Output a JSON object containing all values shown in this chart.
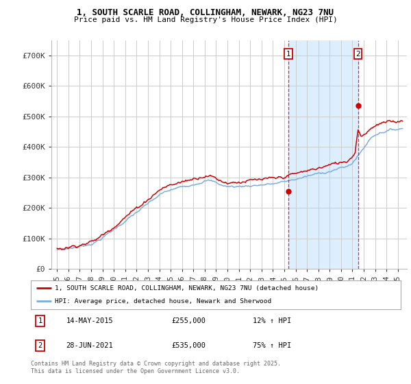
{
  "title_line1": "1, SOUTH SCARLE ROAD, COLLINGHAM, NEWARK, NG23 7NU",
  "title_line2": "Price paid vs. HM Land Registry's House Price Index (HPI)",
  "background_color": "#ffffff",
  "plot_bg_color": "#ffffff",
  "grid_color": "#cccccc",
  "red_color": "#cc0000",
  "blue_color": "#7aade0",
  "shade_color": "#ddeeff",
  "ylim": [
    0,
    750000
  ],
  "yticks": [
    0,
    100000,
    200000,
    300000,
    400000,
    500000,
    600000,
    700000
  ],
  "ytick_labels": [
    "£0",
    "£100K",
    "£200K",
    "£300K",
    "£400K",
    "£500K",
    "£600K",
    "£700K"
  ],
  "sale1_year": 2015.37,
  "sale1_y": 255000,
  "sale1_label": "1",
  "sale2_year": 2021.49,
  "sale2_y": 535000,
  "sale2_label": "2",
  "legend_line1": "1, SOUTH SCARLE ROAD, COLLINGHAM, NEWARK, NG23 7NU (detached house)",
  "legend_line2": "HPI: Average price, detached house, Newark and Sherwood",
  "annotation1_date": "14-MAY-2015",
  "annotation1_price": "£255,000",
  "annotation1_hpi": "12% ↑ HPI",
  "annotation2_date": "28-JUN-2021",
  "annotation2_price": "£535,000",
  "annotation2_hpi": "75% ↑ HPI",
  "footer": "Contains HM Land Registry data © Crown copyright and database right 2025.\nThis data is licensed under the Open Government Licence v3.0.",
  "xlim_start": 1994.5,
  "xlim_end": 2025.8
}
